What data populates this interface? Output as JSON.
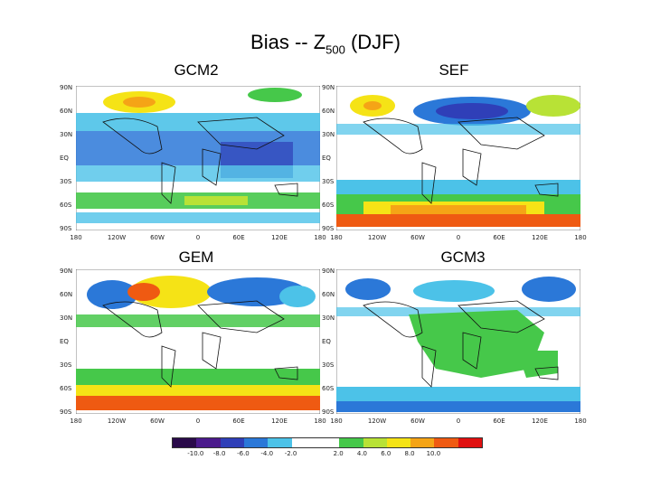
{
  "title": {
    "prefix": "Bias -- Z",
    "subscript": "500",
    "suffix": " (DJF)"
  },
  "panels": [
    {
      "label": "GCM2",
      "lat_labels": [
        "90N",
        "60N",
        "30N",
        "EQ",
        "30S",
        "60S",
        "90S"
      ],
      "lon_labels": [
        "180",
        "120W",
        "60W",
        "0",
        "60E",
        "120E",
        "180"
      ]
    },
    {
      "label": "SEF",
      "lat_labels": [
        "90N",
        "60N",
        "30N",
        "EQ",
        "30S",
        "60S",
        "90S"
      ],
      "lon_labels": [
        "180",
        "120W",
        "60W",
        "0",
        "60E",
        "120E",
        "180"
      ]
    },
    {
      "label": "GEM",
      "lat_labels": [
        "90N",
        "60N",
        "30N",
        "EQ",
        "30S",
        "60S",
        "90S"
      ],
      "lon_labels": [
        "180",
        "120W",
        "60W",
        "0",
        "60E",
        "120E",
        "180"
      ]
    },
    {
      "label": "GCM3",
      "lat_labels": [
        "90N",
        "60N",
        "30N",
        "EQ",
        "30S",
        "60S",
        "90S"
      ],
      "lon_labels": [
        "180",
        "120W",
        "60W",
        "0",
        "60E",
        "120E",
        "180"
      ]
    }
  ],
  "colorbar": {
    "colors": [
      "#2a0a4a",
      "#4b1a8c",
      "#2f3fb8",
      "#2b78d8",
      "#4cc2e8",
      "#ffffff",
      "#ffffff",
      "#46c84a",
      "#b8e236",
      "#f5e316",
      "#f5a416",
      "#ef5a12",
      "#e01010"
    ],
    "labels": [
      "-10.0",
      "-8.0",
      "-6.0",
      "-4.0",
      "-2.0",
      "2.0",
      "4.0",
      "6.0",
      "8.0",
      "10.0"
    ]
  }
}
